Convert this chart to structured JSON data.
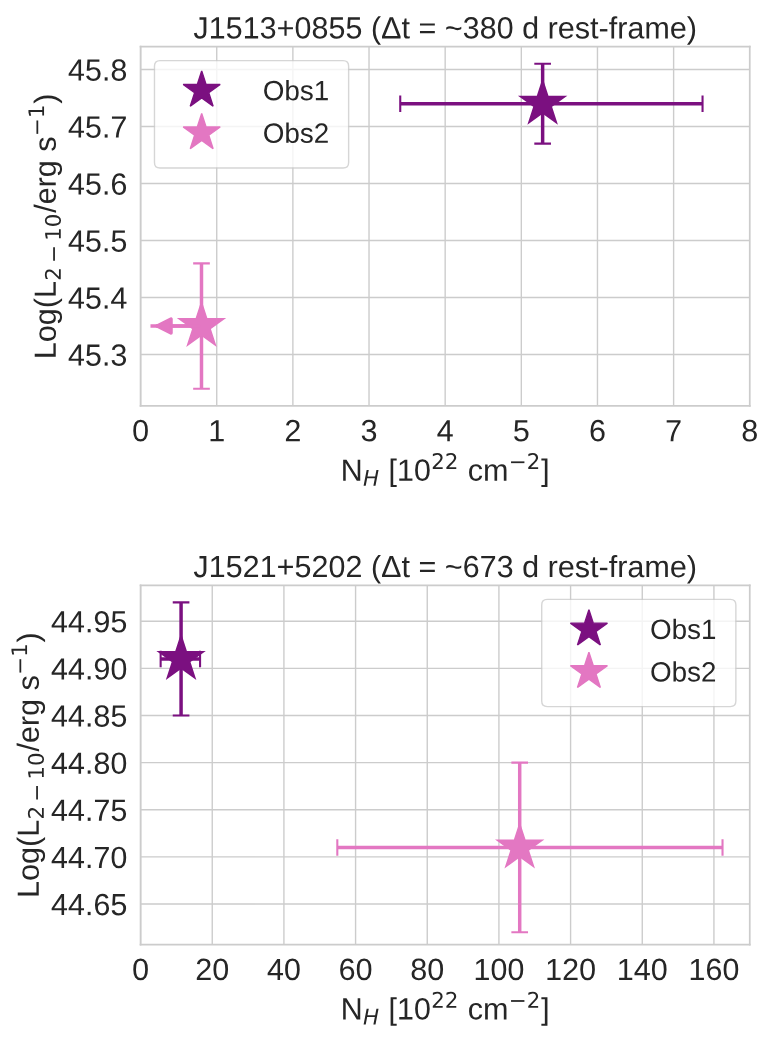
{
  "chart_data": [
    {
      "type": "scatter",
      "title": "J1513+0855 (Δt = ~380 d rest-frame)",
      "xlabel": "N$_{H}$ [10$^{22}$ cm$^{−2}$]",
      "ylabel": "Log(L$_{2−10}$/erg s$^{−1}$)",
      "marker": "star",
      "grid": true,
      "legend": "top left",
      "xlim": [
        0,
        8
      ],
      "xticks": [
        0,
        1,
        2,
        3,
        4,
        5,
        6,
        7,
        8
      ],
      "ylim": [
        45.21,
        45.84
      ],
      "yticks": [
        45.3,
        45.4,
        45.5,
        45.6,
        45.7,
        45.8
      ],
      "series": [
        {
          "name": "Obs1",
          "color": "#7b1080",
          "x": [
            5.28
          ],
          "values": [
            45.74
          ],
          "errors": [
            [
              45.67,
              45.81
            ]
          ],
          "xerrors": [
            [
              3.41,
              7.38
            ]
          ]
        },
        {
          "name": "Obs2",
          "color": "#e377c2",
          "x": [
            0.8
          ],
          "values": [
            45.35
          ],
          "errors": [
            [
              45.24,
              45.46
            ]
          ],
          "xerrors": [
            [
              0.13,
              0.8
            ]
          ]
        }
      ]
    },
    {
      "type": "scatter",
      "title": "J1521+5202 (Δt = ~673 d rest-frame)",
      "xlabel": "N$_{H}$ [10$^{22}$ cm$^{−2}$]",
      "ylabel": "Log(L$_{2−10}$/erg s$^{−1}$)",
      "marker": "star",
      "grid": true,
      "legend": "top right",
      "xlim": [
        0,
        170
      ],
      "xticks": [
        0,
        20,
        40,
        60,
        80,
        100,
        120,
        140,
        160
      ],
      "ylim": [
        44.607,
        44.988
      ],
      "yticks": [
        {
          "value": 44.65,
          "label": "44.65"
        },
        {
          "value": 44.7,
          "label": "44.70"
        },
        {
          "value": 44.75,
          "label": "44.75"
        },
        {
          "value": 44.8,
          "label": "44.80"
        },
        {
          "value": 44.85,
          "label": "44.85"
        },
        {
          "value": 44.9,
          "label": "44.90"
        },
        {
          "value": 44.95,
          "label": "44.95"
        }
      ],
      "series": [
        {
          "name": "Obs1",
          "color": "#7b1080",
          "x": [
            11.3
          ],
          "values": [
            44.91
          ],
          "errors": [
            [
              44.85,
              44.97
            ]
          ],
          "xerrors": [
            [
              5.6,
              16.6
            ]
          ]
        },
        {
          "name": "Obs2",
          "color": "#e377c2",
          "x": [
            105.8
          ],
          "values": [
            44.71
          ],
          "errors": [
            [
              44.62,
              44.8
            ]
          ],
          "xerrors": [
            [
              54.9,
              162.4
            ]
          ]
        }
      ]
    }
  ]
}
